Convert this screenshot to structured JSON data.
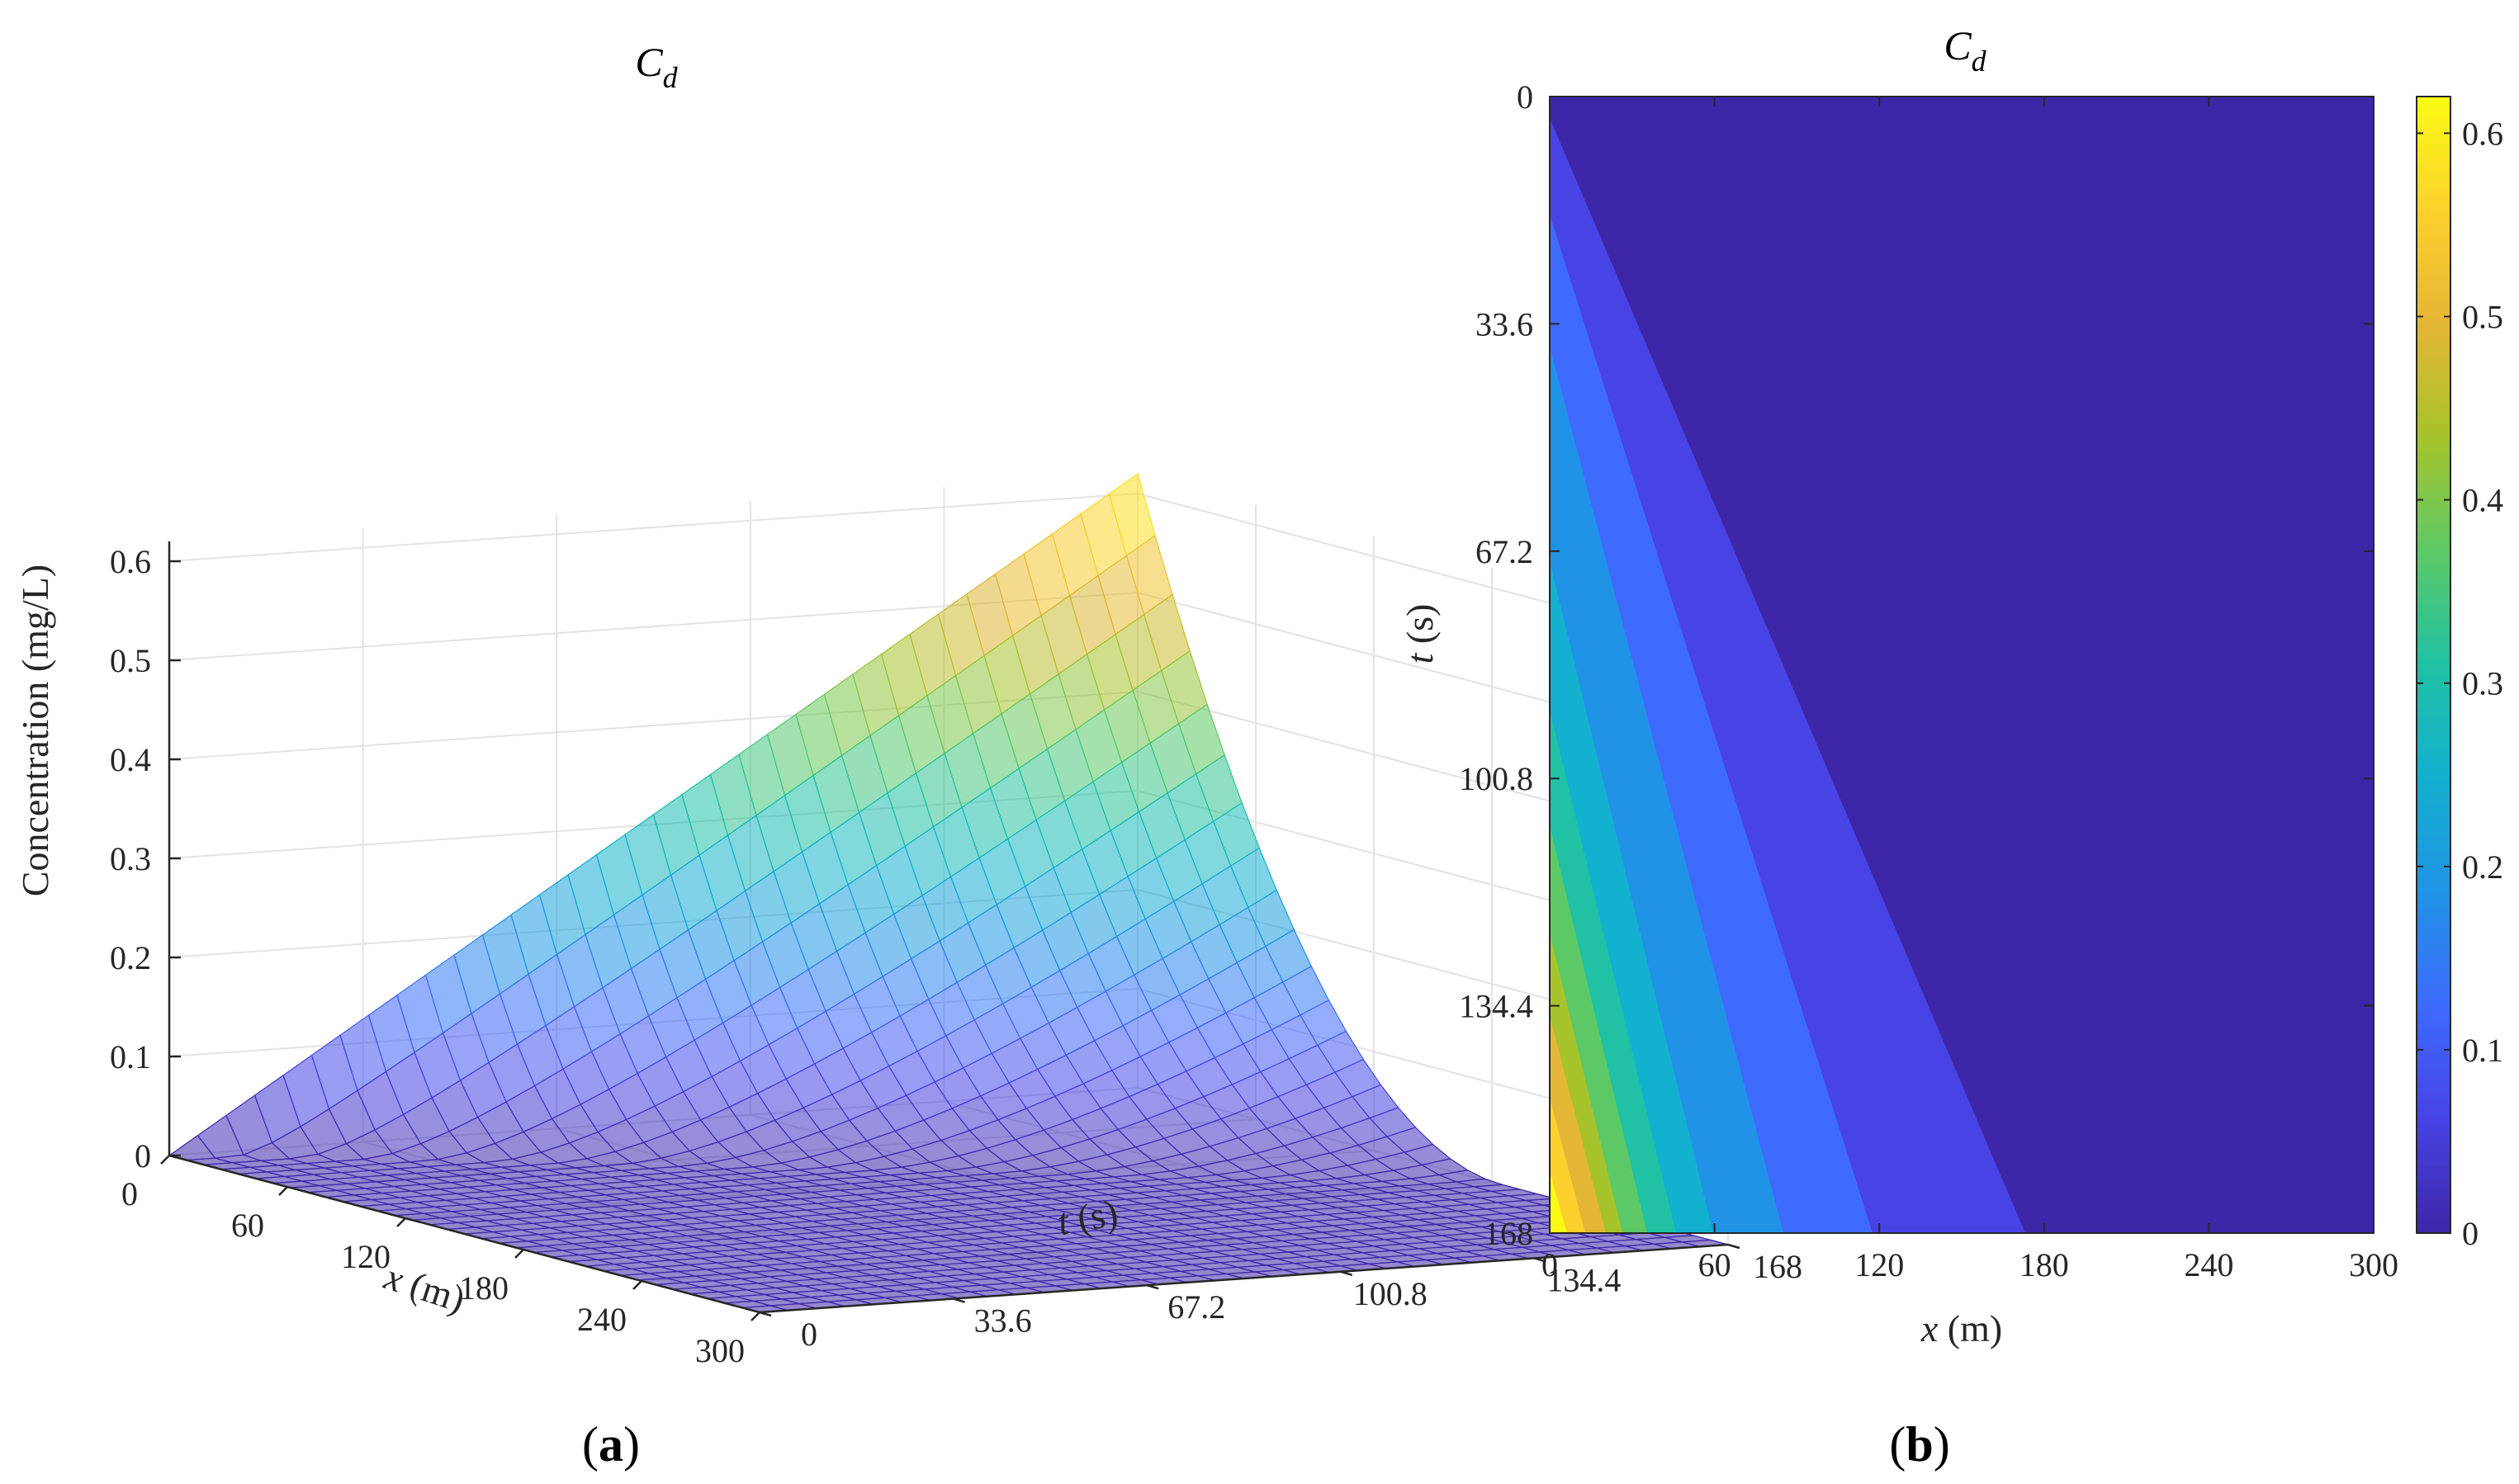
{
  "figure": {
    "panel_a_label": "(a)",
    "panel_b_label": "(b)"
  },
  "chart_data": [
    {
      "type": "surface3d",
      "title": "C_d",
      "title_main": "C",
      "title_sub": "d",
      "xlabel_var": "x",
      "xlabel_unit": " (m)",
      "ylabel_var": "t",
      "ylabel_unit": " (s)",
      "zlabel": "Concentration (mg/L)",
      "x_ticks": [
        "0",
        "60",
        "120",
        "180",
        "240",
        "300"
      ],
      "t_ticks": [
        "0",
        "33.6",
        "67.2",
        "100.8",
        "134.4",
        "168"
      ],
      "z_ticks": [
        "0",
        "0.1",
        "0.2",
        "0.3",
        "0.4",
        "0.5",
        "0.6"
      ],
      "xlim": [
        0,
        300
      ],
      "tlim": [
        0,
        168
      ],
      "zlim": [
        0,
        0.62
      ],
      "peak": {
        "x": 0,
        "t": 168,
        "value": 0.62
      },
      "colormap": "parula",
      "grid": true
    },
    {
      "type": "heatmap",
      "title": "C_d",
      "title_main": "C",
      "title_sub": "d",
      "xlabel_var": "x",
      "xlabel_unit": " (m)",
      "ylabel_var": "t",
      "ylabel_unit": " (s)",
      "x_ticks": [
        "0",
        "60",
        "120",
        "180",
        "240",
        "300"
      ],
      "y_ticks": [
        "0",
        "33.6",
        "67.2",
        "100.8",
        "134.4",
        "168"
      ],
      "colorbar_ticks": [
        "0",
        "0.1",
        "0.2",
        "0.3",
        "0.4",
        "0.5",
        "0.6"
      ],
      "xlim": [
        0,
        300
      ],
      "ylim": [
        0,
        168
      ],
      "clim": [
        0,
        0.62
      ],
      "colormap": "parula",
      "colorbar": "right"
    }
  ]
}
